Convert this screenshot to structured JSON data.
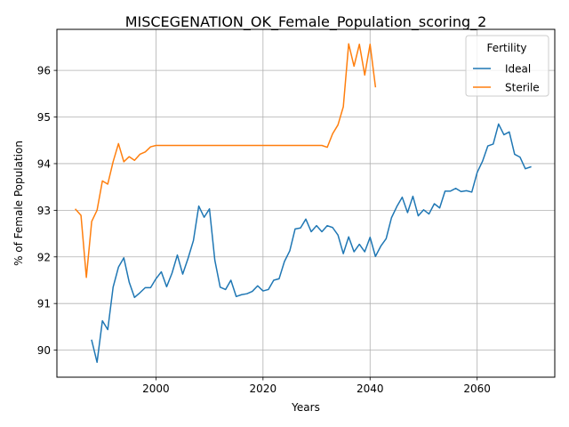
{
  "chart_data": {
    "type": "line",
    "title": "MISCEGENATION_OK_Female_Population_scoring_2",
    "xlabel": "Years",
    "ylabel": "% of Female Population",
    "xlim": [
      1981.5,
      2074.5
    ],
    "ylim": [
      89.42,
      96.88
    ],
    "xticks": [
      2000,
      2020,
      2040,
      2060
    ],
    "yticks": [
      90,
      91,
      92,
      93,
      94,
      95,
      96
    ],
    "grid": true,
    "legend": {
      "title": "Fertility",
      "placement": "top-right"
    },
    "series": [
      {
        "name": "Ideal",
        "color": "#1f77b4",
        "x": [
          1988,
          1989,
          1990,
          1991,
          1992,
          1993,
          1994,
          1995,
          1996,
          1997,
          1998,
          1999,
          2000,
          2001,
          2002,
          2003,
          2004,
          2005,
          2006,
          2007,
          2008,
          2009,
          2010,
          2011,
          2012,
          2013,
          2014,
          2015,
          2016,
          2017,
          2018,
          2019,
          2020,
          2021,
          2022,
          2023,
          2024,
          2025,
          2026,
          2027,
          2028,
          2029,
          2030,
          2031,
          2032,
          2033,
          2034,
          2035,
          2036,
          2037,
          2038,
          2039,
          2040,
          2041,
          2042,
          2043,
          2044,
          2045,
          2046,
          2047,
          2048,
          2049,
          2050,
          2051,
          2052,
          2053,
          2054,
          2055,
          2056,
          2057,
          2058,
          2059,
          2060,
          2061,
          2062,
          2063,
          2064,
          2065,
          2066,
          2067,
          2068,
          2069,
          2070
        ],
        "values": [
          90.21,
          89.74,
          90.63,
          90.44,
          91.35,
          91.78,
          91.98,
          91.46,
          91.13,
          91.23,
          91.34,
          91.34,
          91.53,
          91.68,
          91.36,
          91.65,
          92.04,
          91.63,
          91.97,
          92.35,
          93.09,
          92.85,
          93.03,
          91.93,
          91.35,
          91.3,
          91.5,
          91.15,
          91.19,
          91.21,
          91.26,
          91.38,
          91.27,
          91.3,
          91.5,
          91.53,
          91.9,
          92.13,
          92.6,
          92.62,
          92.81,
          92.54,
          92.67,
          92.54,
          92.67,
          92.63,
          92.47,
          92.07,
          92.43,
          92.11,
          92.27,
          92.11,
          92.42,
          92.01,
          92.23,
          92.39,
          92.84,
          93.08,
          93.28,
          92.95,
          93.3,
          92.88,
          93.01,
          92.92,
          93.14,
          93.05,
          93.41,
          93.41,
          93.47,
          93.4,
          93.42,
          93.39,
          93.81,
          94.05,
          94.38,
          94.42,
          94.85,
          94.62,
          94.68,
          94.2,
          94.14,
          93.89,
          93.93
        ]
      },
      {
        "name": "Sterile",
        "color": "#ff7f0e",
        "x": [
          1985,
          1986,
          1987,
          1988,
          1989,
          1990,
          1991,
          1992,
          1993,
          1994,
          1995,
          1996,
          1997,
          1998,
          1999,
          2000,
          2001,
          2002,
          2003,
          2004,
          2005,
          2006,
          2007,
          2008,
          2009,
          2010,
          2011,
          2012,
          2013,
          2014,
          2015,
          2016,
          2017,
          2018,
          2019,
          2020,
          2021,
          2022,
          2023,
          2024,
          2025,
          2026,
          2027,
          2028,
          2029,
          2030,
          2031,
          2032,
          2033,
          2034,
          2035,
          2036,
          2037,
          2038,
          2039,
          2040,
          2041
        ],
        "values": [
          93.02,
          92.89,
          91.56,
          92.76,
          93.0,
          93.63,
          93.56,
          94.04,
          94.43,
          94.04,
          94.15,
          94.07,
          94.2,
          94.25,
          94.36,
          94.39,
          94.39,
          94.39,
          94.39,
          94.39,
          94.39,
          94.39,
          94.39,
          94.39,
          94.39,
          94.39,
          94.39,
          94.39,
          94.39,
          94.39,
          94.39,
          94.39,
          94.39,
          94.39,
          94.39,
          94.39,
          94.39,
          94.39,
          94.39,
          94.39,
          94.39,
          94.39,
          94.39,
          94.39,
          94.39,
          94.39,
          94.39,
          94.35,
          94.64,
          94.83,
          95.22,
          96.57,
          96.09,
          96.56,
          95.9,
          96.56,
          95.65
        ]
      }
    ]
  }
}
